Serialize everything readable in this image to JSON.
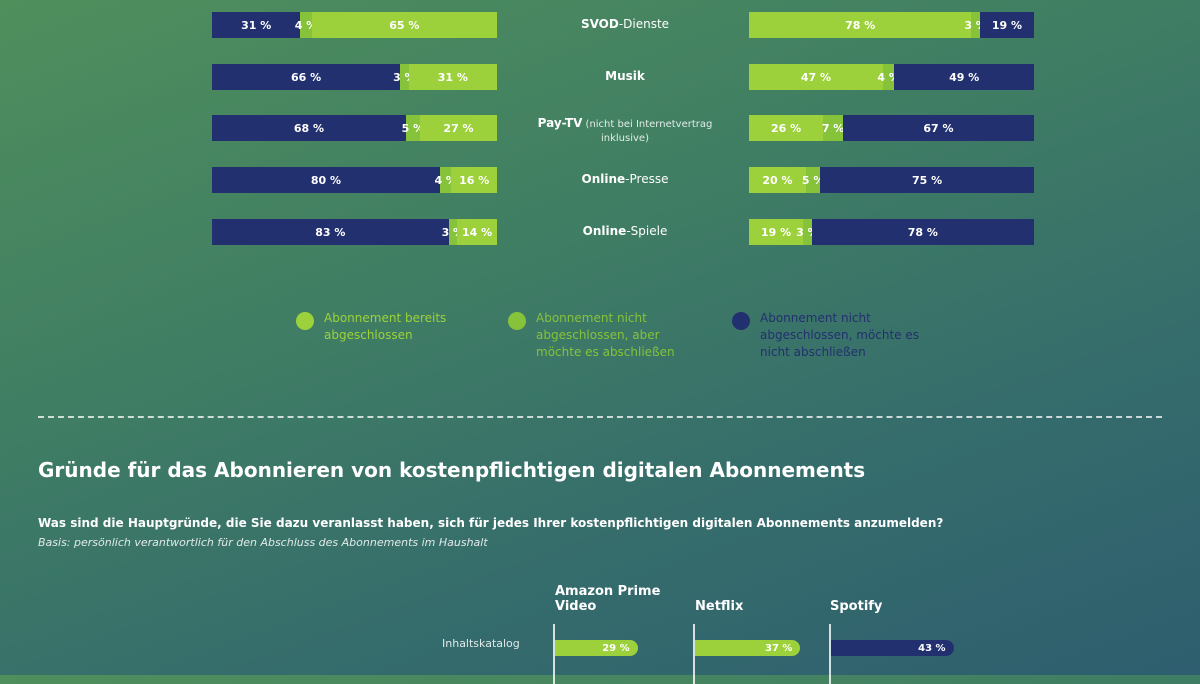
{
  "colors": {
    "bereits": "#9dd13b",
    "moechte": "#86c23a",
    "nicht": "#22306f"
  },
  "chart_data": [
    {
      "type": "bar",
      "orientation": "horizontal",
      "stacked": true,
      "categories": [
        "SVOD-Dienste",
        "Musik",
        "Pay-TV",
        "Online-Presse",
        "Online-Spiele"
      ],
      "series": [
        {
          "name": "Abonnement nicht abgeschlossen, möchte es nicht abschließen",
          "values": [
            31,
            66,
            68,
            80,
            83
          ]
        },
        {
          "name": "Abonnement nicht abgeschlossen, aber möchte es abschließen",
          "values": [
            4,
            3,
            5,
            4,
            3
          ]
        },
        {
          "name": "Abonnement bereits abgeschlossen",
          "values": [
            65,
            31,
            27,
            16,
            14
          ]
        }
      ],
      "labels": [
        [
          "31 %",
          "4 %",
          "65 %"
        ],
        [
          "66 %",
          "3 %",
          "31 %"
        ],
        [
          "68 %",
          "5 %",
          "27 %"
        ],
        [
          "80 %",
          "4 %",
          "16 %"
        ],
        [
          "83 %",
          "3 %",
          "14 %"
        ]
      ]
    },
    {
      "type": "bar",
      "orientation": "horizontal",
      "stacked": true,
      "categories": [
        "SVOD-Dienste",
        "Musik",
        "Pay-TV",
        "Online-Presse",
        "Online-Spiele"
      ],
      "series": [
        {
          "name": "Abonnement bereits abgeschlossen",
          "values": [
            78,
            47,
            26,
            20,
            19
          ]
        },
        {
          "name": "Abonnement nicht abgeschlossen, aber möchte es abschließen",
          "values": [
            3,
            4,
            7,
            5,
            3
          ]
        },
        {
          "name": "Abonnement nicht abgeschlossen, möchte es nicht abschließen",
          "values": [
            19,
            49,
            67,
            75,
            78
          ]
        }
      ],
      "labels": [
        [
          "78 %",
          "3 %",
          "19 %"
        ],
        [
          "47 %",
          "4 %",
          "49 %"
        ],
        [
          "26 %",
          "7 %",
          "67 %"
        ],
        [
          "20 %",
          "5 %",
          "75 %"
        ],
        [
          "19 %",
          "3 %",
          "78 %"
        ]
      ]
    },
    {
      "type": "bar",
      "orientation": "horizontal",
      "title": "Gründe für das Abonnieren von kostenpflichtigen digitalen Abonnements",
      "categories": [
        "Inhaltskatalog"
      ],
      "series": [
        {
          "name": "Amazon Prime Video",
          "values": [
            29
          ],
          "label": "29 %",
          "color": "#9dd13b"
        },
        {
          "name": "Netflix",
          "values": [
            37
          ],
          "label": "37 %",
          "color": "#9dd13b"
        },
        {
          "name": "Spotify",
          "values": [
            43
          ],
          "label": "43 %",
          "color": "#22306f"
        }
      ]
    }
  ],
  "categories": [
    {
      "bold": "SVOD",
      "rest": "-Dienste",
      "note": ""
    },
    {
      "bold": "Musik",
      "rest": "",
      "note": ""
    },
    {
      "bold": "Pay-TV",
      "rest": "",
      "note": " (nicht bei Internetvertrag inklusive)"
    },
    {
      "bold": "Online",
      "rest": "-Presse",
      "note": ""
    },
    {
      "bold": "Online",
      "rest": "-Spiele",
      "note": ""
    }
  ],
  "legend": [
    {
      "text": "Abonnement bereits abgeschlossen"
    },
    {
      "text": "Abonnement nicht abgeschlossen, aber möchte es abschließen"
    },
    {
      "text": "Abonnement nicht abgeschlossen, möchte es nicht abschließen"
    }
  ],
  "section2": {
    "title": "Gründe für das Abonnieren von kostenpflichtigen digitalen Abonnements",
    "question": "Was sind die Hauptgründe, die Sie dazu veranlasst haben, sich für jedes Ihrer kostenpflichtigen digitalen Abonnements anzumelden?",
    "basis": "Basis: persönlich verantwortlich für den Abschluss des Abonnements im Haushalt",
    "row_label": "Inhaltskatalog"
  }
}
